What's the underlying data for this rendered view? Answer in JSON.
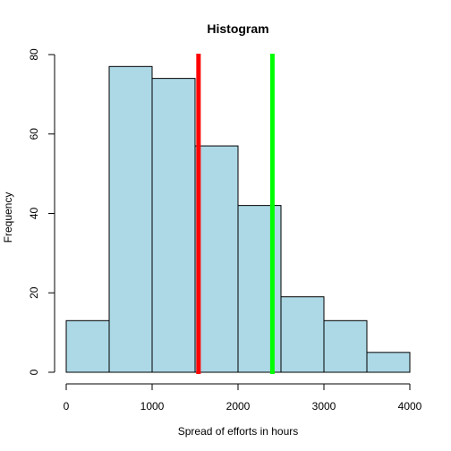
{
  "chart_data": {
    "type": "bar",
    "title": "Histogram",
    "xlabel": "Spread of efforts in hours",
    "ylabel": "Frequency",
    "bins": [
      {
        "start": 0,
        "end": 500,
        "count": 13
      },
      {
        "start": 500,
        "end": 1000,
        "count": 77
      },
      {
        "start": 1000,
        "end": 1500,
        "count": 74
      },
      {
        "start": 1500,
        "end": 2000,
        "count": 57
      },
      {
        "start": 2000,
        "end": 2500,
        "count": 42
      },
      {
        "start": 2500,
        "end": 3000,
        "count": 19
      },
      {
        "start": 3000,
        "end": 3500,
        "count": 13
      },
      {
        "start": 3500,
        "end": 4000,
        "count": 5
      }
    ],
    "xlim": [
      0,
      4000
    ],
    "ylim": [
      0,
      80
    ],
    "x_ticks": [
      0,
      1000,
      2000,
      3000,
      4000
    ],
    "y_ticks": [
      0,
      20,
      40,
      60,
      80
    ],
    "bar_color": "#add8e6",
    "vertical_lines": [
      {
        "x": 1540,
        "color": "#ff0000"
      },
      {
        "x": 2400,
        "color": "#00ff00"
      }
    ],
    "grid": false
  }
}
